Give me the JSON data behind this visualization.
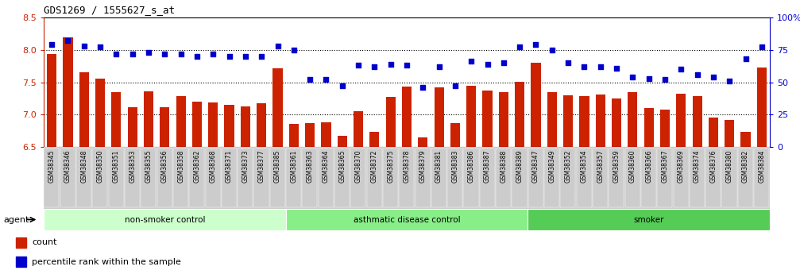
{
  "title": "GDS1269 / 1555627_s_at",
  "samples": [
    "GSM38345",
    "GSM38346",
    "GSM38348",
    "GSM38350",
    "GSM38351",
    "GSM38353",
    "GSM38355",
    "GSM38356",
    "GSM38358",
    "GSM38362",
    "GSM38368",
    "GSM38371",
    "GSM38373",
    "GSM38377",
    "GSM38385",
    "GSM38361",
    "GSM38363",
    "GSM38364",
    "GSM38365",
    "GSM38370",
    "GSM38372",
    "GSM38375",
    "GSM38378",
    "GSM38379",
    "GSM38381",
    "GSM38383",
    "GSM38386",
    "GSM38387",
    "GSM38388",
    "GSM38389",
    "GSM38347",
    "GSM38349",
    "GSM38352",
    "GSM38354",
    "GSM38357",
    "GSM38359",
    "GSM38360",
    "GSM38366",
    "GSM38367",
    "GSM38369",
    "GSM38374",
    "GSM38376",
    "GSM38380",
    "GSM38382",
    "GSM38384"
  ],
  "bar_values": [
    7.93,
    8.19,
    7.65,
    7.55,
    7.35,
    7.11,
    7.36,
    7.11,
    7.28,
    7.2,
    7.19,
    7.15,
    7.12,
    7.18,
    7.72,
    6.86,
    6.87,
    6.88,
    6.67,
    7.05,
    6.73,
    7.27,
    7.43,
    6.65,
    7.42,
    6.87,
    7.45,
    7.37,
    7.35,
    7.5,
    7.8,
    7.35,
    7.3,
    7.28,
    7.31,
    7.25,
    7.35,
    7.1,
    7.08,
    7.32,
    7.28,
    6.96,
    6.92,
    6.73,
    7.73
  ],
  "percentile_values": [
    79,
    82,
    78,
    77,
    72,
    72,
    73,
    72,
    72,
    70,
    72,
    70,
    70,
    70,
    78,
    75,
    52,
    52,
    47,
    63,
    62,
    64,
    63,
    46,
    62,
    47,
    66,
    64,
    65,
    77,
    79,
    75,
    65,
    62,
    62,
    61,
    54,
    53,
    52,
    60,
    56,
    54,
    51,
    68,
    77
  ],
  "groups": [
    {
      "label": "non-smoker control",
      "start": 0,
      "end": 14,
      "color": "#ccffcc"
    },
    {
      "label": "asthmatic disease control",
      "start": 15,
      "end": 29,
      "color": "#88ee88"
    },
    {
      "label": "smoker",
      "start": 30,
      "end": 44,
      "color": "#55cc55"
    }
  ],
  "bar_color": "#cc2200",
  "dot_color": "#0000cc",
  "ylim_left": [
    6.5,
    8.5
  ],
  "ylim_right": [
    0,
    100
  ],
  "yticks_left": [
    6.5,
    7.0,
    7.5,
    8.0,
    8.5
  ],
  "yticks_right": [
    0,
    25,
    50,
    75,
    100
  ],
  "ytick_labels_right": [
    "0",
    "25",
    "50",
    "75",
    "100%"
  ],
  "hlines": [
    7.0,
    7.5,
    8.0
  ],
  "left_axis_color": "#cc2200",
  "right_axis_color": "#0000cc",
  "agent_label": "agent",
  "legend_bar_label": "count",
  "legend_dot_label": "percentile rank within the sample",
  "xtick_bg_color": "#cccccc",
  "fig_bg_color": "#ffffff"
}
